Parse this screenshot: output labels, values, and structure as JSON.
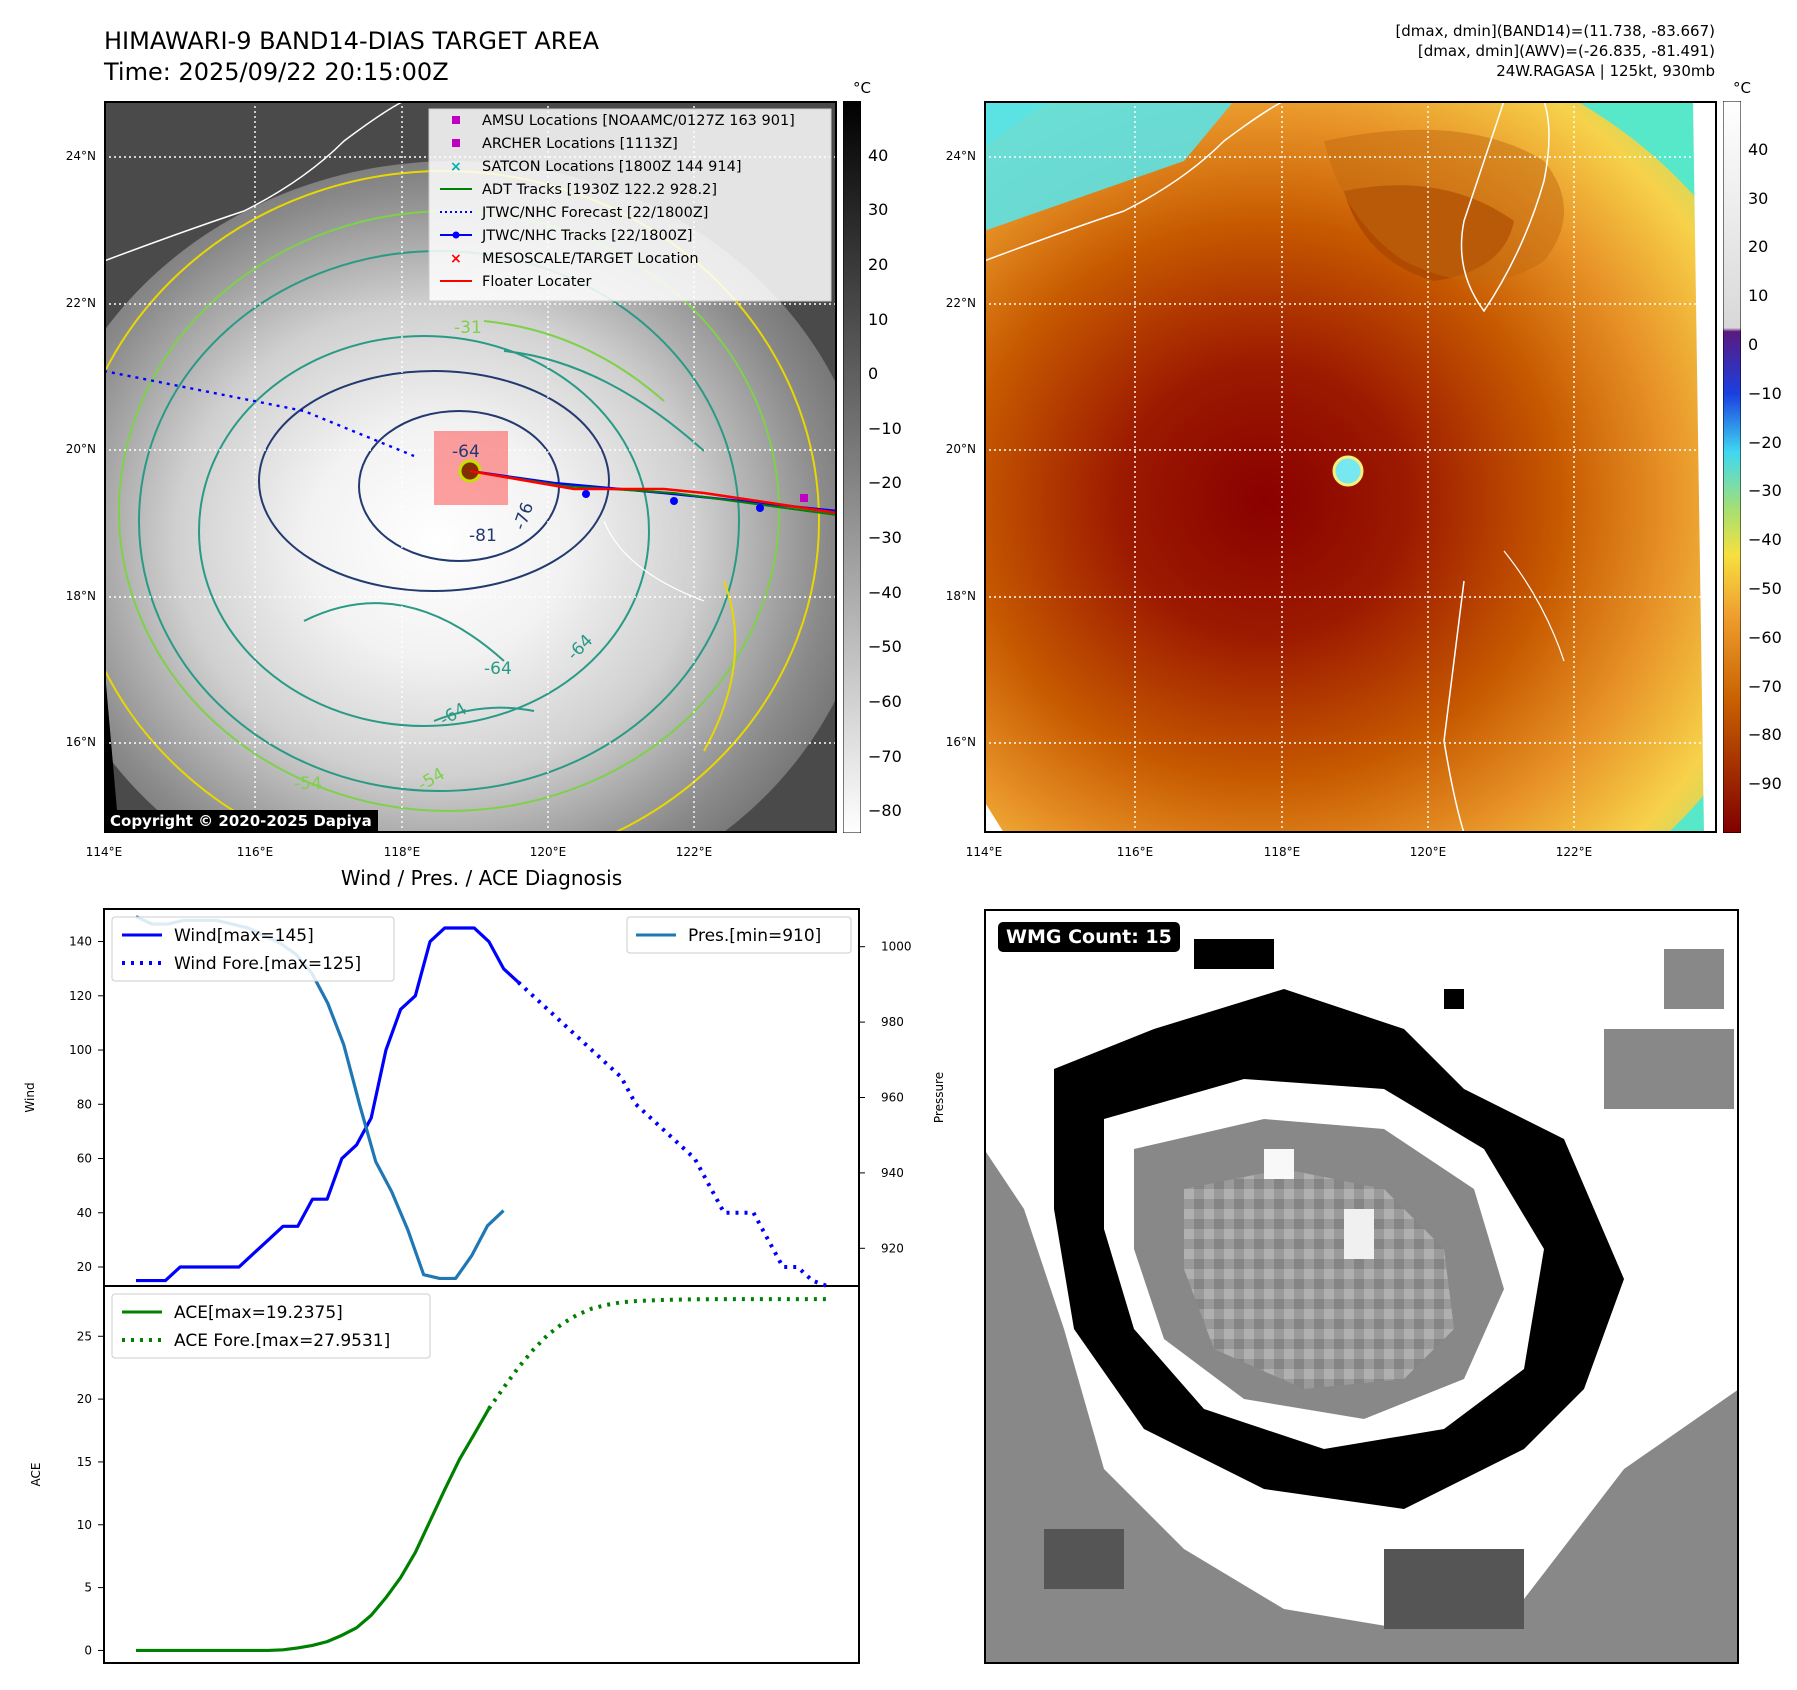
{
  "header": {
    "title_line1": "HIMAWARI-9 BAND14-DIAS TARGET AREA",
    "title_line2": "Time: 2025/09/22 20:15:00Z",
    "info_line1": "[dmax, dmin](BAND14)=(11.738, -83.667)",
    "info_line2": "[dmax, dmin](AWV)=(-26.835, -81.491)",
    "info_line3": "24W.RAGASA | 125kt, 930mb"
  },
  "map_axes": {
    "lon_ticks": [
      "114°E",
      "116°E",
      "118°E",
      "120°E",
      "122°E"
    ],
    "lat_ticks": [
      "24°N",
      "22°N",
      "20°N",
      "18°N",
      "16°N"
    ]
  },
  "colorbar_gray": {
    "unit": "°C",
    "ticks": [
      "40",
      "30",
      "20",
      "10",
      "0",
      "−10",
      "−20",
      "−30",
      "−40",
      "−50",
      "−60",
      "−70",
      "−80"
    ]
  },
  "colorbar_color": {
    "unit": "°C",
    "ticks": [
      "40",
      "30",
      "20",
      "10",
      "0",
      "−10",
      "−20",
      "−30",
      "−40",
      "−50",
      "−60",
      "−70",
      "−80",
      "−90"
    ]
  },
  "legend_map": [
    {
      "label": "AMSU Locations [NOAAMC/0127Z 163 901]",
      "color": "#c000c0",
      "marker": "square"
    },
    {
      "label": "ARCHER Locations [1113Z]",
      "color": "#c000c0",
      "marker": "square"
    },
    {
      "label": "SATCON Locations [1800Z 144 914]",
      "color": "#00b0b0",
      "marker": "x"
    },
    {
      "label": "ADT Tracks [1930Z 122.2 928.2]",
      "color": "#008000",
      "marker": "line"
    },
    {
      "label": "JTWC/NHC Forecast [22/1800Z]",
      "color": "#0000ff",
      "marker": "dotted"
    },
    {
      "label": "JTWC/NHC Tracks [22/1800Z]",
      "color": "#0000ff",
      "marker": "line-dot"
    },
    {
      "label": "MESOSCALE/TARGET Location",
      "color": "#ff0000",
      "marker": "x"
    },
    {
      "label": "Floater Locater",
      "color": "#ff0000",
      "marker": "line"
    }
  ],
  "contour_labels": [
    "-81",
    "-76",
    "-64",
    "-64",
    "-64",
    "-64",
    "-54",
    "-54",
    "-31"
  ],
  "copyright": "Copyright © 2020-2025 Dapiya",
  "wmg": {
    "label": "WMG Count: 15"
  },
  "chart_data": [
    {
      "type": "line",
      "title": "Wind / Pres. / ACE Diagnosis",
      "ylabel": "Wind",
      "ylabel_right": "Pressure",
      "ylim": [
        13,
        152
      ],
      "ylim_right": [
        910,
        1010
      ],
      "yticks": [
        20,
        40,
        60,
        80,
        100,
        120,
        140
      ],
      "yticks_right": [
        920,
        940,
        960,
        980,
        1000
      ],
      "legend_left": [
        "Wind[max=145]",
        "Wind Fore.[max=125]"
      ],
      "legend_right": [
        "Pres.[min=910]"
      ],
      "series": [
        {
          "name": "Wind[max=145]",
          "color": "#0000ff",
          "style": "solid",
          "values": [
            15,
            15,
            15,
            20,
            20,
            20,
            20,
            20,
            25,
            30,
            35,
            35,
            45,
            45,
            60,
            65,
            75,
            100,
            115,
            120,
            140,
            145,
            145,
            145,
            140,
            130,
            125
          ]
        },
        {
          "name": "Wind Fore.[max=125]",
          "color": "#0000ff",
          "style": "dotted",
          "values": [
            null,
            null,
            null,
            null,
            null,
            null,
            null,
            null,
            null,
            null,
            null,
            null,
            null,
            null,
            null,
            null,
            null,
            null,
            null,
            null,
            null,
            null,
            null,
            null,
            null,
            null,
            125,
            120,
            115,
            110,
            105,
            100,
            95,
            90,
            80,
            75,
            70,
            65,
            60,
            50,
            40,
            40,
            40,
            30,
            20,
            20,
            15,
            13
          ]
        },
        {
          "name": "Pres.[min=910]",
          "color": "#1f77b4",
          "style": "solid",
          "axis": "right",
          "values": [
            1008,
            1006,
            1006,
            1007,
            1007,
            1007,
            1006,
            1005,
            1003,
            1001,
            998,
            993,
            985,
            974,
            958,
            943,
            935,
            925,
            913,
            912,
            912,
            918,
            926,
            930
          ]
        }
      ]
    },
    {
      "type": "line",
      "ylabel": "ACE",
      "ylim": [
        -1,
        29
      ],
      "yticks": [
        0,
        5,
        10,
        15,
        20,
        25
      ],
      "legend": [
        "ACE[max=19.2375]",
        "ACE Fore.[max=27.9531]"
      ],
      "series": [
        {
          "name": "ACE[max=19.2375]",
          "color": "#008000",
          "style": "solid",
          "values": [
            0,
            0,
            0,
            0,
            0,
            0,
            0,
            0,
            0,
            0,
            0.05,
            0.2,
            0.4,
            0.7,
            1.2,
            1.8,
            2.8,
            4.2,
            5.8,
            7.8,
            10.3,
            12.8,
            15.2,
            17.2,
            19.2375
          ]
        },
        {
          "name": "ACE Fore.[max=27.9531]",
          "color": "#008000",
          "style": "dotted",
          "values": [
            null,
            null,
            null,
            null,
            null,
            null,
            null,
            null,
            null,
            null,
            null,
            null,
            null,
            null,
            null,
            null,
            null,
            null,
            null,
            null,
            null,
            null,
            null,
            null,
            19.2375,
            20.9,
            22.5,
            23.9,
            25.1,
            26.0,
            26.7,
            27.2,
            27.5,
            27.7,
            27.8,
            27.85,
            27.9,
            27.92,
            27.94,
            27.95,
            27.9531,
            27.9531,
            27.9531,
            27.9531,
            27.9531,
            27.9531,
            27.9531,
            27.9531
          ]
        }
      ]
    }
  ]
}
